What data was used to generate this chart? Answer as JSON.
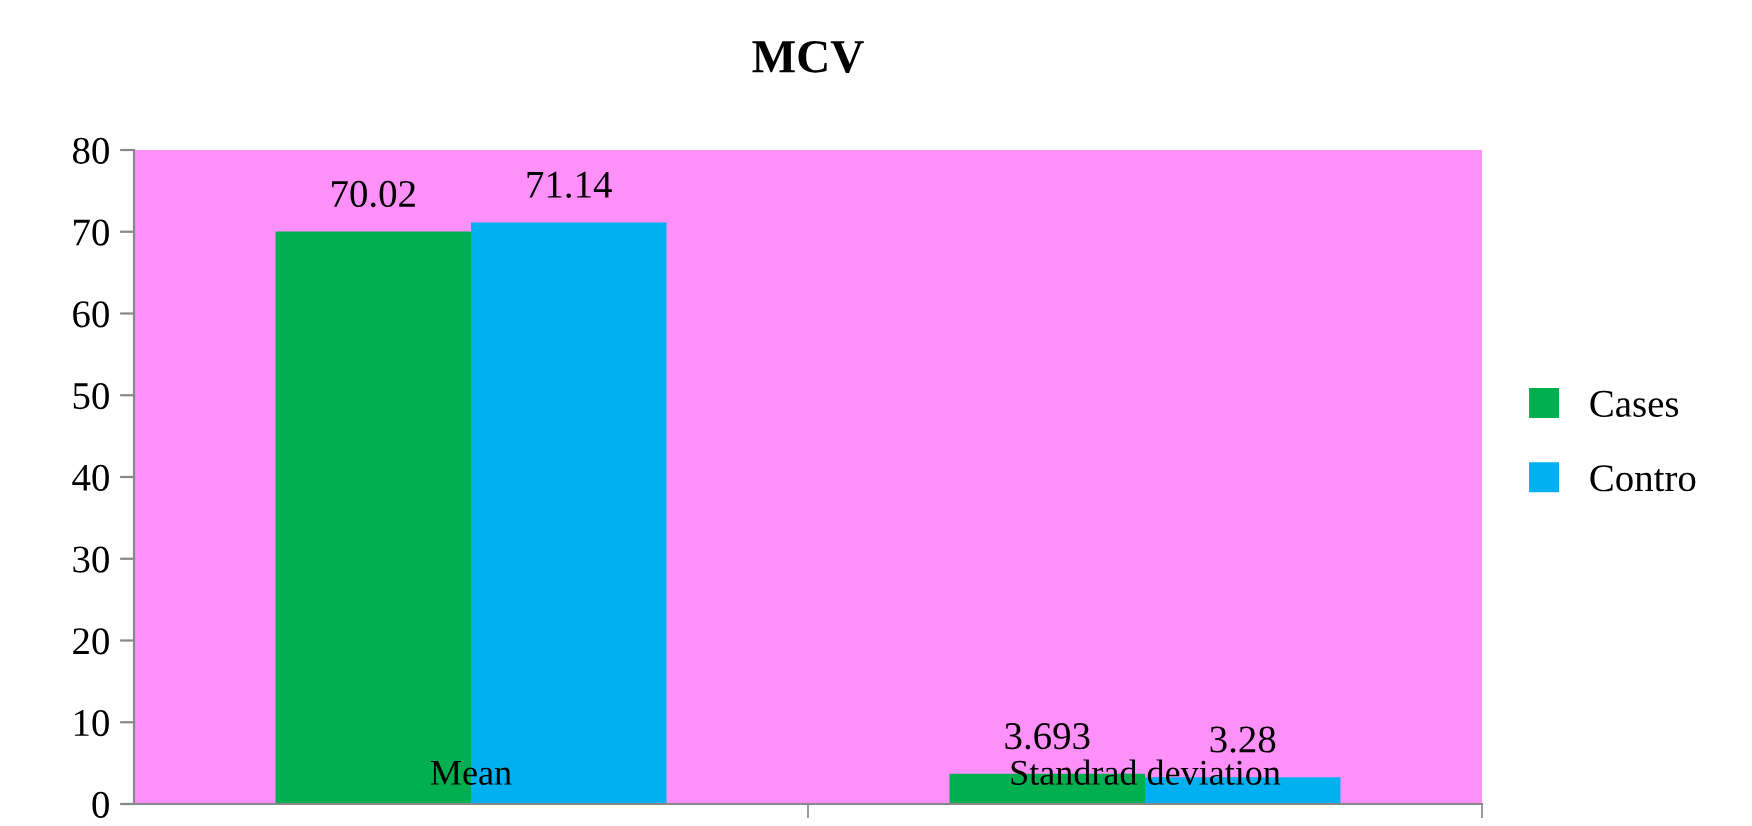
{
  "chart_data": {
    "type": "bar",
    "title": "MCV",
    "categories": [
      "Mean",
      "Standrad deviation"
    ],
    "series": [
      {
        "name": "Cases",
        "color": "#00b050",
        "values": [
          70.02,
          3.693
        ]
      },
      {
        "name": "Contro",
        "color": "#00b0f0",
        "values": [
          71.14,
          3.28
        ]
      }
    ],
    "ylim": [
      0,
      80
    ],
    "yticks": [
      0,
      10,
      20,
      30,
      40,
      50,
      60,
      70,
      80
    ],
    "data_labels": true,
    "legend": "right",
    "grid": false
  }
}
